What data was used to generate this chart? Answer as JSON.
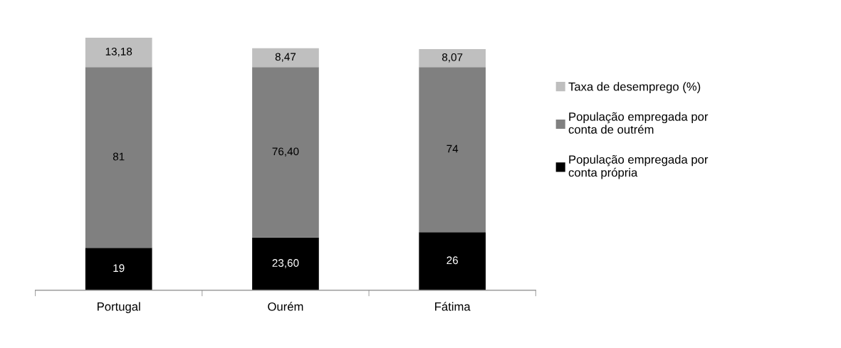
{
  "chart_data": {
    "type": "bar",
    "stacked": true,
    "legend": "right",
    "categories": [
      "Portugal",
      "Ourém",
      "Fátima"
    ],
    "series": [
      {
        "name": "População empregada por conta própria",
        "color": "#000000",
        "values": [
          19,
          23.6,
          26
        ],
        "value_labels": [
          "19",
          "23,60",
          "26"
        ]
      },
      {
        "name": "População empregada por conta de outrém",
        "color": "#808080",
        "values": [
          81,
          76.4,
          74
        ],
        "value_labels": [
          "81",
          "76,40",
          "74"
        ]
      },
      {
        "name": "Taxa de desemprego (%)",
        "color": "#bfbfbf",
        "values": [
          13.18,
          8.47,
          8.07
        ],
        "value_labels": [
          "13,18",
          "8,47",
          "8,07"
        ]
      }
    ]
  }
}
